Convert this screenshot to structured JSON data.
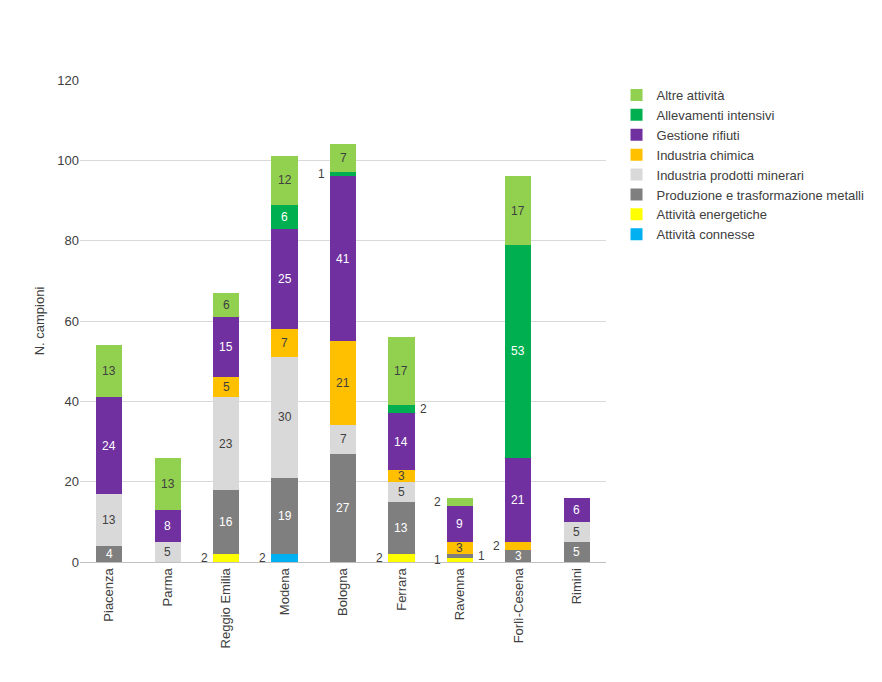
{
  "chart_data": {
    "type": "bar",
    "stacked": true,
    "data_labels": true,
    "grid": true,
    "legend": "right",
    "y_label": "N. campioni",
    "categories": [
      "Piacenza",
      "Parma",
      "Reggio Emilia",
      "Modena",
      "Bologna",
      "Ferrara",
      "Ravenna",
      "Forlì-Cesena",
      "Rimini"
    ],
    "ylim": [
      0,
      120
    ],
    "yticks": [
      0,
      20,
      40,
      60,
      80,
      100,
      120
    ],
    "series": [
      {
        "name": "Attività connesse",
        "color": "#00B0F0",
        "values": [
          null,
          null,
          null,
          2,
          null,
          null,
          null,
          null,
          null
        ]
      },
      {
        "name": "Attività energetiche",
        "color": "#FFFF00",
        "values": [
          null,
          null,
          2,
          null,
          null,
          2,
          1,
          null,
          null
        ]
      },
      {
        "name": "Produzione e trasformazione metalli",
        "color": "#7F7F7F",
        "values": [
          4,
          null,
          16,
          19,
          27,
          13,
          1,
          3,
          5
        ]
      },
      {
        "name": "Industria prodotti minerari",
        "color": "#D9D9D9",
        "values": [
          13,
          5,
          23,
          30,
          7,
          5,
          null,
          null,
          5
        ]
      },
      {
        "name": "Industria chimica",
        "color": "#FFC000",
        "values": [
          null,
          null,
          5,
          7,
          21,
          3,
          3,
          2,
          null
        ]
      },
      {
        "name": "Gestione rifiuti",
        "color": "#7030A0",
        "values": [
          24,
          8,
          15,
          25,
          41,
          14,
          9,
          21,
          6
        ]
      },
      {
        "name": "Allevamenti intensivi",
        "color": "#00B050",
        "values": [
          null,
          null,
          null,
          6,
          1,
          2,
          null,
          53,
          null
        ]
      },
      {
        "name": "Altre attività",
        "color": "#92D050",
        "values": [
          13,
          13,
          6,
          12,
          7,
          17,
          2,
          17,
          null
        ]
      }
    ]
  }
}
